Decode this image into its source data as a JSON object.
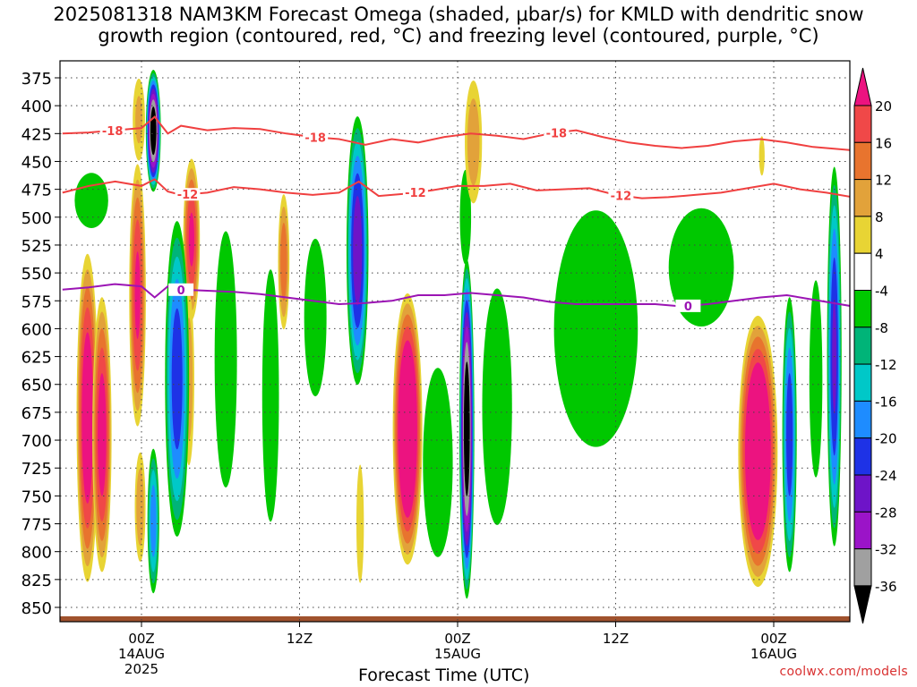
{
  "title": {
    "line1": "2025081318 NAM3KM Forecast Omega (shaded, μbar/s) for KMLD with dendritic snow",
    "line2": "growth region (contoured, red, °C) and freezing level (contoured, purple, °C)"
  },
  "credit": "coolwx.com/models",
  "colors": {
    "omega_pos_4_8": "#e8d434",
    "omega_pos_8_12": "#e2a23a",
    "omega_pos_12_16": "#e8742e",
    "omega_pos_16_20": "#f04848",
    "omega_pos_gt20": "#ec1380",
    "omega_neg_4_8": "#00c800",
    "omega_neg_8_12": "#00b478",
    "omega_neg_12_16": "#00c8c8",
    "omega_neg_16_20": "#1e8cff",
    "omega_neg_20_24": "#1e32e6",
    "omega_neg_24_28": "#6e14c8",
    "omega_neg_28_32": "#9b14c8",
    "omega_neg_32_36": "#a0a0a0",
    "omega_neg_lt36": "#000000",
    "dgz_contour": "#f04040",
    "freezing_contour": "#9b14b4",
    "terrain": "#a0522d"
  },
  "chart_data": {
    "type": "heatmap",
    "xlabel": "Forecast Time (UTC)",
    "ylabel": "",
    "x_ticks": [
      {
        "hour": 6,
        "label": "00Z",
        "sub1": "14AUG",
        "sub2": "2025"
      },
      {
        "hour": 18,
        "label": "12Z",
        "sub1": "",
        "sub2": ""
      },
      {
        "hour": 30,
        "label": "00Z",
        "sub1": "15AUG",
        "sub2": ""
      },
      {
        "hour": 42,
        "label": "12Z",
        "sub1": "",
        "sub2": ""
      },
      {
        "hour": 54,
        "label": "00Z",
        "sub1": "16AUG",
        "sub2": ""
      }
    ],
    "xlim_hours": [
      0,
      60
    ],
    "y_ticks": [
      375,
      400,
      425,
      450,
      475,
      500,
      525,
      550,
      575,
      600,
      625,
      650,
      675,
      700,
      725,
      750,
      775,
      800,
      825,
      850
    ],
    "ylim_hPa": [
      365,
      862
    ],
    "colorbar": {
      "labels": [
        "20",
        "16",
        "12",
        "8",
        "4",
        "-4",
        "-8",
        "-12",
        "-16",
        "-20",
        "-24",
        "-28",
        "-32",
        "-36"
      ],
      "bins": [
        {
          "range": "16 to 20",
          "color": "#f04848"
        },
        {
          "range": "12 to 16",
          "color": "#e8742e"
        },
        {
          "range": "8 to 12",
          "color": "#e2a23a"
        },
        {
          "range": "4 to 8",
          "color": "#e8d434"
        },
        {
          "range": "-4 to 4",
          "color": "#ffffff"
        },
        {
          "range": "-8 to -4",
          "color": "#00c800"
        },
        {
          "range": "-12 to -8",
          "color": "#00b478"
        },
        {
          "range": "-16 to -12",
          "color": "#00c8c8"
        },
        {
          "range": "-20 to -16",
          "color": "#1e8cff"
        },
        {
          "range": "-24 to -20",
          "color": "#1e32e6"
        },
        {
          "range": "-28 to -24",
          "color": "#6e14c8"
        },
        {
          "range": "-32 to -28",
          "color": "#9b14c8"
        },
        {
          "range": "-36 to -32",
          "color": "#a0a0a0"
        }
      ],
      "top_arrow_color": "#ec1380",
      "bottom_arrow_color": "#000000"
    },
    "omega_features": [
      {
        "h": 1.9,
        "p1": 520,
        "p2": 840,
        "w": 0.9,
        "peak": 24
      },
      {
        "h": 3.0,
        "p1": 560,
        "p2": 830,
        "w": 0.8,
        "peak": 22
      },
      {
        "h": 5.7,
        "p1": 440,
        "p2": 700,
        "w": 0.7,
        "peak": 20
      },
      {
        "h": 5.9,
        "p1": 700,
        "p2": 820,
        "w": 0.5,
        "peak": 10
      },
      {
        "h": 5.8,
        "p1": 365,
        "p2": 460,
        "w": 0.6,
        "peak": 8
      },
      {
        "h": 6.9,
        "p1": 365,
        "p2": 480,
        "w": 0.6,
        "peak": -40
      },
      {
        "h": 6.9,
        "p1": 700,
        "p2": 845,
        "w": 0.5,
        "peak": -18
      },
      {
        "h": 9.8,
        "p1": 440,
        "p2": 600,
        "w": 0.7,
        "peak": 20
      },
      {
        "h": 9.6,
        "p1": 550,
        "p2": 740,
        "w": 0.5,
        "peak": 10
      },
      {
        "h": 8.7,
        "p1": 490,
        "p2": 800,
        "w": 1.0,
        "peak": -22
      },
      {
        "h": 12.4,
        "p1": 465,
        "p2": 790,
        "w": 1.2,
        "peak": -6
      },
      {
        "h": 16.8,
        "p1": 470,
        "p2": 610,
        "w": 0.5,
        "peak": 14
      },
      {
        "h": 15.8,
        "p1": 500,
        "p2": 820,
        "w": 0.9,
        "peak": -6
      },
      {
        "h": 19.2,
        "p1": 490,
        "p2": 690,
        "w": 1.2,
        "peak": -6
      },
      {
        "h": 22.4,
        "p1": 400,
        "p2": 660,
        "w": 0.9,
        "peak": -26
      },
      {
        "h": 26.2,
        "p1": 560,
        "p2": 820,
        "w": 1.2,
        "peak": 30
      },
      {
        "h": 28.5,
        "p1": 600,
        "p2": 840,
        "w": 1.6,
        "peak": -6
      },
      {
        "h": 30.7,
        "p1": 530,
        "p2": 850,
        "w": 0.6,
        "peak": -40
      },
      {
        "h": 30.6,
        "p1": 440,
        "p2": 560,
        "w": 0.6,
        "peak": -6
      },
      {
        "h": 31.2,
        "p1": 365,
        "p2": 500,
        "w": 0.8,
        "peak": 10
      },
      {
        "h": 33.0,
        "p1": 520,
        "p2": 820,
        "w": 1.6,
        "peak": -6
      },
      {
        "h": 40.5,
        "p1": 450,
        "p2": 750,
        "w": 4.5,
        "peak": -6
      },
      {
        "h": 48.5,
        "p1": 470,
        "p2": 620,
        "w": 3.5,
        "peak": -6
      },
      {
        "h": 52.8,
        "p1": 580,
        "p2": 840,
        "w": 1.6,
        "peak": 30
      },
      {
        "h": 55.2,
        "p1": 560,
        "p2": 830,
        "w": 0.6,
        "peak": -22
      },
      {
        "h": 57.2,
        "p1": 520,
        "p2": 770,
        "w": 0.7,
        "peak": -6
      },
      {
        "h": 58.6,
        "p1": 440,
        "p2": 810,
        "w": 0.6,
        "peak": -24
      },
      {
        "h": 53.1,
        "p1": 420,
        "p2": 470,
        "w": 0.3,
        "peak": 6
      },
      {
        "h": 22.6,
        "p1": 700,
        "p2": 850,
        "w": 0.4,
        "peak": 6
      },
      {
        "h": 2.2,
        "p1": 450,
        "p2": 520,
        "w": 1.8,
        "peak": -6
      }
    ],
    "dgz_contours": [
      {
        "label": "-18",
        "label_hours": [
          3.8,
          19.2,
          37.5
        ],
        "x": [
          0,
          2,
          4,
          6,
          7,
          8,
          9,
          11,
          13,
          15,
          17,
          19,
          21,
          23,
          25,
          27,
          29,
          31,
          33,
          35,
          37,
          39,
          41,
          43,
          45,
          47,
          49,
          51,
          53,
          55,
          57,
          60
        ],
        "y": [
          425,
          424,
          422,
          420,
          410,
          425,
          418,
          422,
          420,
          421,
          425,
          428,
          430,
          435,
          430,
          433,
          428,
          425,
          427,
          430,
          425,
          422,
          428,
          433,
          436,
          438,
          436,
          432,
          430,
          433,
          437,
          440
        ]
      },
      {
        "label": "-12",
        "label_hours": [
          9.5,
          26.8,
          42.4
        ],
        "x": [
          0,
          2,
          4,
          6,
          7,
          8,
          9,
          11,
          13,
          15,
          17,
          19,
          21,
          22.5,
          24,
          26,
          28,
          30,
          32,
          34,
          36,
          38,
          40,
          42,
          44,
          46,
          48,
          50,
          52,
          54,
          56,
          58,
          60
        ],
        "y": [
          478,
          472,
          468,
          472,
          466,
          477,
          480,
          478,
          473,
          475,
          478,
          480,
          478,
          468,
          481,
          479,
          476,
          472,
          472,
          470,
          476,
          475,
          474,
          480,
          483,
          482,
          480,
          478,
          474,
          470,
          475,
          478,
          482
        ]
      }
    ],
    "freezing_contour": {
      "label": "0",
      "label_hours": [
        9.0,
        47.5
      ],
      "x": [
        0,
        2,
        4,
        6,
        7,
        8,
        9,
        11,
        13,
        15,
        17,
        19,
        21,
        23,
        25,
        27,
        29,
        31,
        33,
        35,
        37,
        39,
        41,
        43,
        45,
        47,
        49,
        51,
        53,
        55,
        57,
        60
      ],
      "y": [
        565,
        563,
        560,
        562,
        572,
        562,
        565,
        566,
        567,
        569,
        572,
        575,
        578,
        577,
        575,
        570,
        570,
        568,
        570,
        572,
        576,
        578,
        578,
        578,
        578,
        580,
        578,
        575,
        572,
        570,
        574,
        580
      ]
    },
    "terrain_hPa": 858
  }
}
